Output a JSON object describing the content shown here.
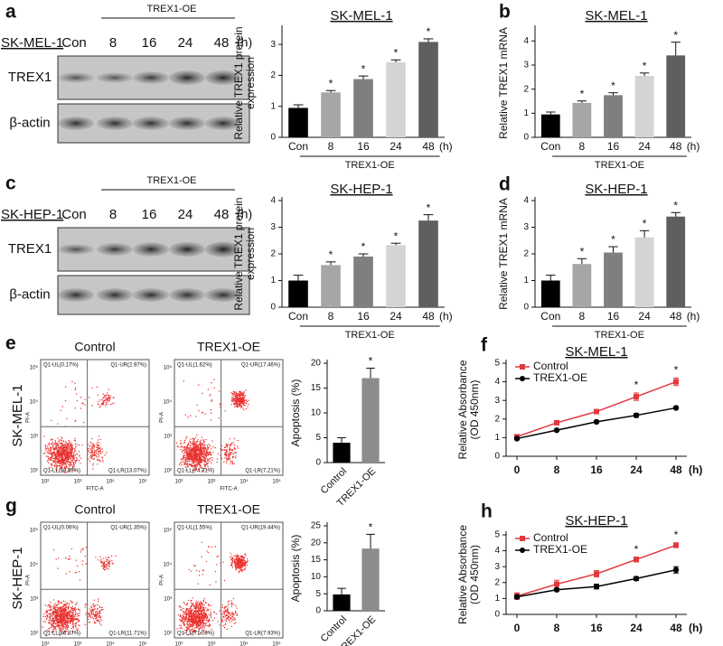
{
  "blots": [
    {
      "panel": "a",
      "cell": "SK-MEL-1",
      "group": "TREX1-OE",
      "lanes": [
        "Con",
        "8",
        "16",
        "24",
        "48"
      ],
      "unit": "(h)",
      "rows": [
        "TREX1",
        "β-actin"
      ]
    },
    {
      "panel": "c",
      "cell": "SK-HEP-1",
      "group": "TREX1-OE",
      "lanes": [
        "Con",
        "8",
        "16",
        "24",
        "48"
      ],
      "unit": "(h)",
      "rows": [
        "TREX1",
        "β-actin"
      ]
    }
  ],
  "flow": [
    {
      "panel": "e",
      "cell": "SK-MEL-1",
      "plots": [
        {
          "title": "Control",
          "quadrants": [
            "Q1-UL(0.17%)",
            "Q1-UR(2.97%)",
            "Q1-LL(83.89%)",
            "Q1-LR(13.07%)"
          ]
        },
        {
          "title": "TREX1-OE",
          "quadrants": [
            "Q1-UL(1.62%)",
            "Q1-UR(17.46%)",
            "Q1-LL(74.31%)",
            "Q1-LR(7.21%)"
          ]
        }
      ]
    },
    {
      "panel": "g",
      "cell": "SK-HEP-1",
      "plots": [
        {
          "title": "Control",
          "quadrants": [
            "Q1-UL(0.06%)",
            "Q1-UR(1.35%)",
            "Q1-LL(86.87%)",
            "Q1-LR(11.71%)"
          ]
        },
        {
          "title": "TREX1-OE",
          "quadrants": [
            "Q1-UL(1.55%)",
            "Q1-UR(19.44%)",
            "Q1-LL(71.08%)",
            "Q1-LR(7.93%)"
          ]
        }
      ]
    }
  ],
  "flow_axes": {
    "x": "FITC-A",
    "y": "PI-A",
    "ticks": [
      "10²",
      "10³",
      "10⁴",
      "10⁵"
    ]
  },
  "chart_data": [
    {
      "type": "bar",
      "title": "SK-MEL-1",
      "ylabel": [
        "Relative TREX1 protein",
        "expression"
      ],
      "categories": [
        "Con",
        "8",
        "16",
        "24",
        "48"
      ],
      "unit": "(h)",
      "group": "TREX1-OE",
      "values": [
        0.95,
        1.45,
        1.88,
        2.42,
        3.08
      ],
      "errors": [
        0.1,
        0.06,
        0.1,
        0.08,
        0.1
      ],
      "significance": [
        null,
        "*",
        "*",
        "*",
        "*"
      ],
      "colors": [
        "#000000",
        "#a6a6a6",
        "#7f7f7f",
        "#d4d4d4",
        "#5f5f5f"
      ],
      "ylim": [
        0,
        3.5
      ],
      "yticks": [
        0,
        1,
        2,
        3
      ]
    },
    {
      "type": "bar",
      "panel": "b",
      "title": "SK-MEL-1",
      "ylabel": [
        "Relative TREX1 mRNA"
      ],
      "categories": [
        "Con",
        "8",
        "16",
        "24",
        "48"
      ],
      "unit": "(h)",
      "group": "TREX1-OE",
      "values": [
        0.95,
        1.43,
        1.75,
        2.55,
        3.4
      ],
      "errors": [
        0.1,
        0.08,
        0.1,
        0.12,
        0.55
      ],
      "significance": [
        null,
        "*",
        "*",
        "*",
        "*"
      ],
      "colors": [
        "#000000",
        "#a6a6a6",
        "#7f7f7f",
        "#d4d4d4",
        "#5f5f5f"
      ],
      "ylim": [
        0,
        4.5
      ],
      "yticks": [
        0,
        1,
        2,
        3,
        4
      ]
    },
    {
      "type": "bar",
      "title": "SK-HEP-1",
      "ylabel": [
        "Relative TREX1 protein",
        "expression"
      ],
      "categories": [
        "Con",
        "8",
        "16",
        "24",
        "48"
      ],
      "unit": "(h)",
      "group": "TREX1-OE",
      "values": [
        1.0,
        1.58,
        1.9,
        2.33,
        3.25
      ],
      "errors": [
        0.2,
        0.12,
        0.1,
        0.07,
        0.22
      ],
      "significance": [
        null,
        "*",
        "*",
        "*",
        "*"
      ],
      "colors": [
        "#000000",
        "#a6a6a6",
        "#7f7f7f",
        "#d4d4d4",
        "#5f5f5f"
      ],
      "ylim": [
        0,
        4
      ],
      "yticks": [
        0,
        1,
        2,
        3,
        4
      ]
    },
    {
      "type": "bar",
      "panel": "d",
      "title": "SK-HEP-1",
      "ylabel": [
        "Relative TREX1 mRNA"
      ],
      "categories": [
        "Con",
        "8",
        "16",
        "24",
        "48"
      ],
      "unit": "(h)",
      "group": "TREX1-OE",
      "values": [
        1.0,
        1.62,
        2.05,
        2.62,
        3.4
      ],
      "errors": [
        0.2,
        0.2,
        0.22,
        0.25,
        0.15
      ],
      "significance": [
        null,
        "*",
        "*",
        "*",
        "*"
      ],
      "colors": [
        "#000000",
        "#a6a6a6",
        "#7f7f7f",
        "#d4d4d4",
        "#5f5f5f"
      ],
      "ylim": [
        0,
        4
      ],
      "yticks": [
        0,
        1,
        2,
        3,
        4
      ]
    },
    {
      "type": "bar",
      "ylabel": [
        "Apoptosis (%)"
      ],
      "categories": [
        "Control",
        "TREX1-OE"
      ],
      "values": [
        4,
        17
      ],
      "errors": [
        1,
        2
      ],
      "significance": [
        null,
        "*"
      ],
      "colors": [
        "#000000",
        "#8c8c8c"
      ],
      "ylim": [
        0,
        20
      ],
      "yticks": [
        0,
        5,
        10,
        15,
        20
      ]
    },
    {
      "type": "bar",
      "ylabel": [
        "Apoptosis (%)"
      ],
      "categories": [
        "Control",
        "TREX1-OE"
      ],
      "values": [
        4.8,
        18.3
      ],
      "errors": [
        1.8,
        4.2
      ],
      "significance": [
        null,
        "*"
      ],
      "colors": [
        "#000000",
        "#8c8c8c"
      ],
      "ylim": [
        0,
        25
      ],
      "yticks": [
        0,
        5,
        10,
        15,
        20,
        25
      ]
    },
    {
      "type": "line",
      "panel": "f",
      "title": "SK-MEL-1",
      "ylabel": [
        "Relative Absorbance",
        "(OD 450nm)"
      ],
      "categories": [
        "0",
        "8",
        "16",
        "24",
        "48"
      ],
      "unit": "(h)",
      "series": [
        {
          "name": "Control",
          "color": "#e0393e",
          "values": [
            1.05,
            1.8,
            2.4,
            3.2,
            4.0
          ],
          "errors": [
            0.05,
            0.08,
            0.1,
            0.2,
            0.2
          ]
        },
        {
          "name": "TREX1-OE",
          "color": "#000000",
          "values": [
            0.95,
            1.4,
            1.85,
            2.2,
            2.6
          ],
          "errors": [
            0.04,
            0.05,
            0.06,
            0.1,
            0.05
          ]
        }
      ],
      "significance": [
        null,
        null,
        null,
        "*",
        "*"
      ],
      "legend": "upper left",
      "ylim": [
        0,
        5
      ],
      "yticks": [
        0,
        1,
        2,
        3,
        4,
        5
      ]
    },
    {
      "type": "line",
      "panel": "h",
      "title": "SK-HEP-1",
      "ylabel": [
        "Relative Absorbance",
        "(OD 450nm)"
      ],
      "categories": [
        "0",
        "8",
        "16",
        "24",
        "48"
      ],
      "unit": "(h)",
      "series": [
        {
          "name": "Control",
          "color": "#e0393e",
          "values": [
            1.15,
            1.9,
            2.55,
            3.45,
            4.35
          ],
          "errors": [
            0.2,
            0.25,
            0.2,
            0.15,
            0.15
          ]
        },
        {
          "name": "TREX1-OE",
          "color": "#000000",
          "values": [
            1.1,
            1.55,
            1.75,
            2.25,
            2.8
          ],
          "errors": [
            0.1,
            0.08,
            0.15,
            0.12,
            0.2
          ]
        }
      ],
      "significance": [
        null,
        null,
        null,
        "*",
        "*"
      ],
      "legend": "upper left",
      "ylim": [
        0,
        5
      ],
      "yticks": [
        0,
        1,
        2,
        3,
        4,
        5
      ]
    }
  ]
}
